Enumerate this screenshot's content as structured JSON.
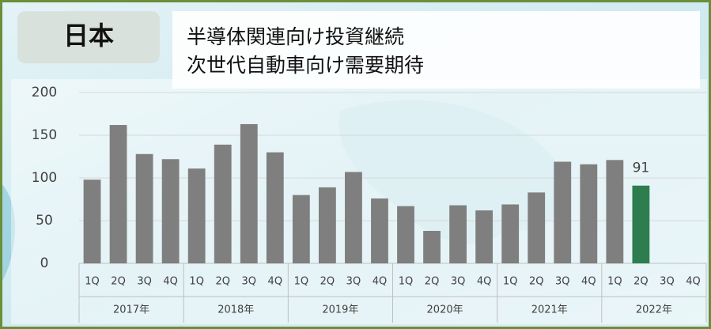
{
  "chart_data": {
    "type": "bar",
    "title": "日本",
    "subtitle": [
      "半導体関連向け投資継続",
      "次世代自動車向け需要期待"
    ],
    "categories": [
      "1Q",
      "2Q",
      "3Q",
      "4Q",
      "1Q",
      "2Q",
      "3Q",
      "4Q",
      "1Q",
      "2Q",
      "3Q",
      "4Q",
      "1Q",
      "2Q",
      "3Q",
      "4Q",
      "1Q",
      "2Q",
      "3Q",
      "4Q",
      "1Q",
      "2Q",
      "3Q",
      "4Q"
    ],
    "groups": [
      "2017年",
      "2018年",
      "2019年",
      "2020年",
      "2021年",
      "2022年"
    ],
    "values": [
      98,
      162,
      128,
      122,
      111,
      139,
      163,
      130,
      80,
      89,
      107,
      76,
      67,
      38,
      68,
      62,
      69,
      83,
      119,
      116,
      121,
      91,
      null,
      null
    ],
    "color": "#7f7f7f",
    "highlight": {
      "index": 21,
      "color": "#2e7d4f"
    },
    "ylim": [
      0,
      200
    ],
    "yticks": [
      0,
      50,
      100,
      150,
      200
    ],
    "grid": true
  }
}
